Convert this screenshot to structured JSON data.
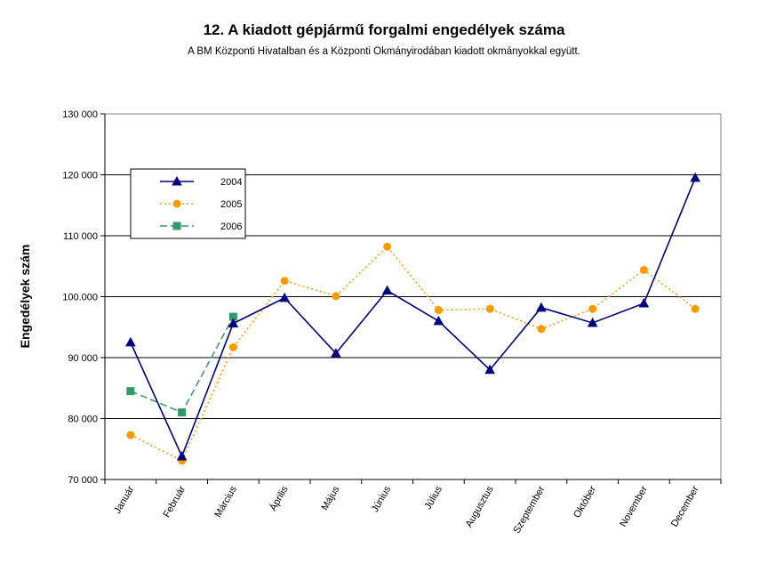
{
  "chart_data": {
    "type": "line",
    "title": "12. A  kiadott gépjármű forgalmi engedélyek száma",
    "subtitle": "A BM Központi Hivatalban és a Központi Okmányirodában kiadott okmányokkal együtt.",
    "xlabel": "",
    "ylabel": "Engedélyek szám",
    "ylim": [
      70000,
      130000
    ],
    "y_ticks": [
      70000,
      80000,
      90000,
      100000,
      110000,
      120000,
      130000
    ],
    "y_tick_labels": [
      "70 000",
      "80 000",
      "90 000",
      "100.000",
      "110 000",
      "120 000",
      "130 000"
    ],
    "grid": true,
    "legend_position": "top-left",
    "categories": [
      "Január",
      "Február",
      "Március",
      "Április",
      "Május",
      "Június",
      "Július",
      "Augusztus",
      "Szeptember",
      "Október",
      "November",
      "December"
    ],
    "series": [
      {
        "name": "2004",
        "color": "#000080",
        "marker": "triangle",
        "line_style": "solid",
        "values": [
          92500,
          73800,
          95600,
          99800,
          90700,
          101000,
          96000,
          88000,
          98200,
          95700,
          98900,
          119500
        ]
      },
      {
        "name": "2005",
        "color": "#FF9900",
        "marker": "circle",
        "line_style": "dotted",
        "values": [
          77300,
          73100,
          91700,
          102600,
          100100,
          108200,
          97800,
          98000,
          94700,
          98000,
          104400,
          98000
        ]
      },
      {
        "name": "2006",
        "color": "#339966",
        "marker": "square",
        "line_style": "dashed",
        "values": [
          84500,
          81000,
          96700,
          null,
          null,
          null,
          null,
          null,
          null,
          null,
          null,
          null
        ]
      }
    ]
  }
}
